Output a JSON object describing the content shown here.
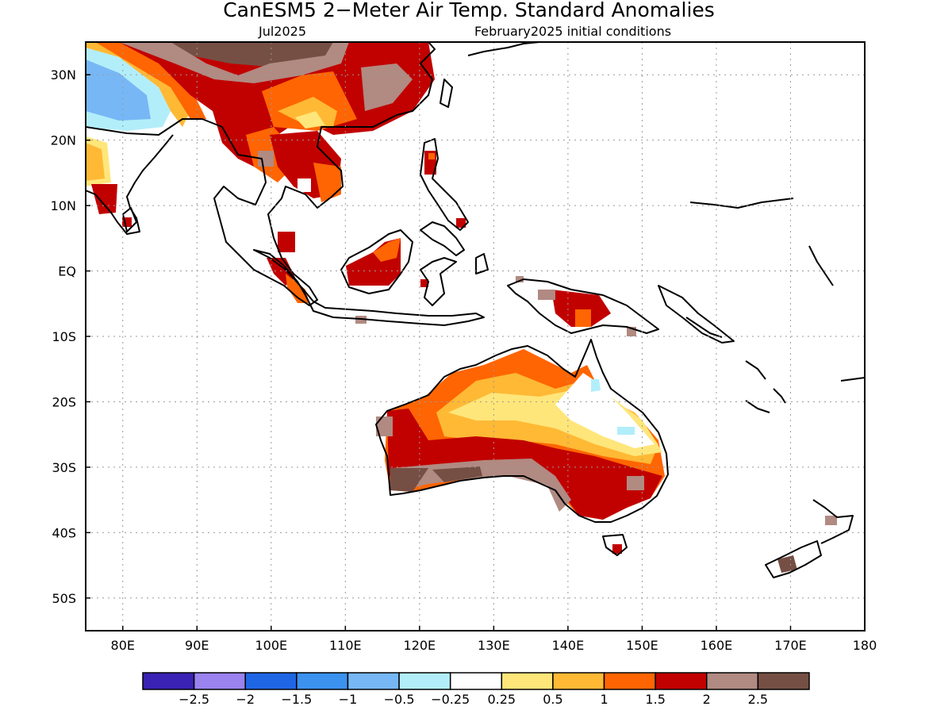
{
  "title": "CanESM5 2−Meter Air Temp. Standard Anomalies",
  "subtitle_left": "Jul2025",
  "subtitle_right": "February2025 initial conditions",
  "map": {
    "lon_range": [
      75,
      180
    ],
    "lat_range": [
      -55,
      35
    ],
    "lon_ticks": [
      {
        "v": 80,
        "label": "80E"
      },
      {
        "v": 90,
        "label": "90E"
      },
      {
        "v": 100,
        "label": "100E"
      },
      {
        "v": 110,
        "label": "110E"
      },
      {
        "v": 120,
        "label": "120E"
      },
      {
        "v": 130,
        "label": "130E"
      },
      {
        "v": 140,
        "label": "140E"
      },
      {
        "v": 150,
        "label": "150E"
      },
      {
        "v": 160,
        "label": "160E"
      },
      {
        "v": 170,
        "label": "170E"
      },
      {
        "v": 180,
        "label": "180"
      }
    ],
    "lat_ticks": [
      {
        "v": 30,
        "label": "30N"
      },
      {
        "v": 20,
        "label": "20N"
      },
      {
        "v": 10,
        "label": "10N"
      },
      {
        "v": 0,
        "label": "EQ"
      },
      {
        "v": -10,
        "label": "10S"
      },
      {
        "v": -20,
        "label": "20S"
      },
      {
        "v": -30,
        "label": "30S"
      },
      {
        "v": -40,
        "label": "40S"
      },
      {
        "v": -50,
        "label": "50S"
      }
    ],
    "grid": true
  },
  "colorbar": {
    "colors": [
      "#3a22b4",
      "#9a82ef",
      "#1f66e5",
      "#3b92ef",
      "#77b7f6",
      "#b2eefa",
      "#ffffff",
      "#ffe67a",
      "#ffb935",
      "#ff6502",
      "#c10100",
      "#b18a82",
      "#764f44"
    ],
    "labels": [
      "−2.5",
      "−2",
      "−1.5",
      "−1",
      "−0.5",
      "−0.25",
      "0.25",
      "0.5",
      "1",
      "1.5",
      "2",
      "2.5"
    ]
  }
}
